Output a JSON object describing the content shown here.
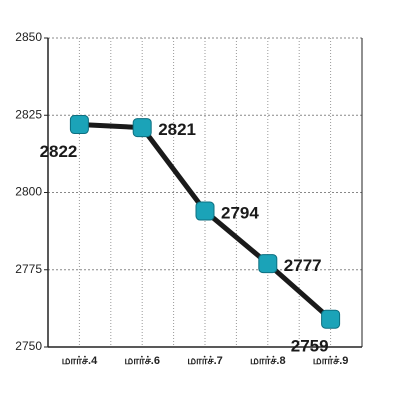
{
  "chart_data": {
    "type": "line",
    "categories": [
      "மார்ச்.4",
      "மார்ச்.6",
      "மார்ச்.7",
      "மார்ச்.8",
      "மார்ச்.9"
    ],
    "values": [
      2822,
      2821,
      2794,
      2777,
      2759
    ],
    "color": "#1a1a1a",
    "marker_color": "#1ba3b8",
    "ylim": [
      2750,
      2850
    ],
    "yticks": [
      2750,
      2775,
      2800,
      2825,
      2850
    ],
    "grid": true
  }
}
